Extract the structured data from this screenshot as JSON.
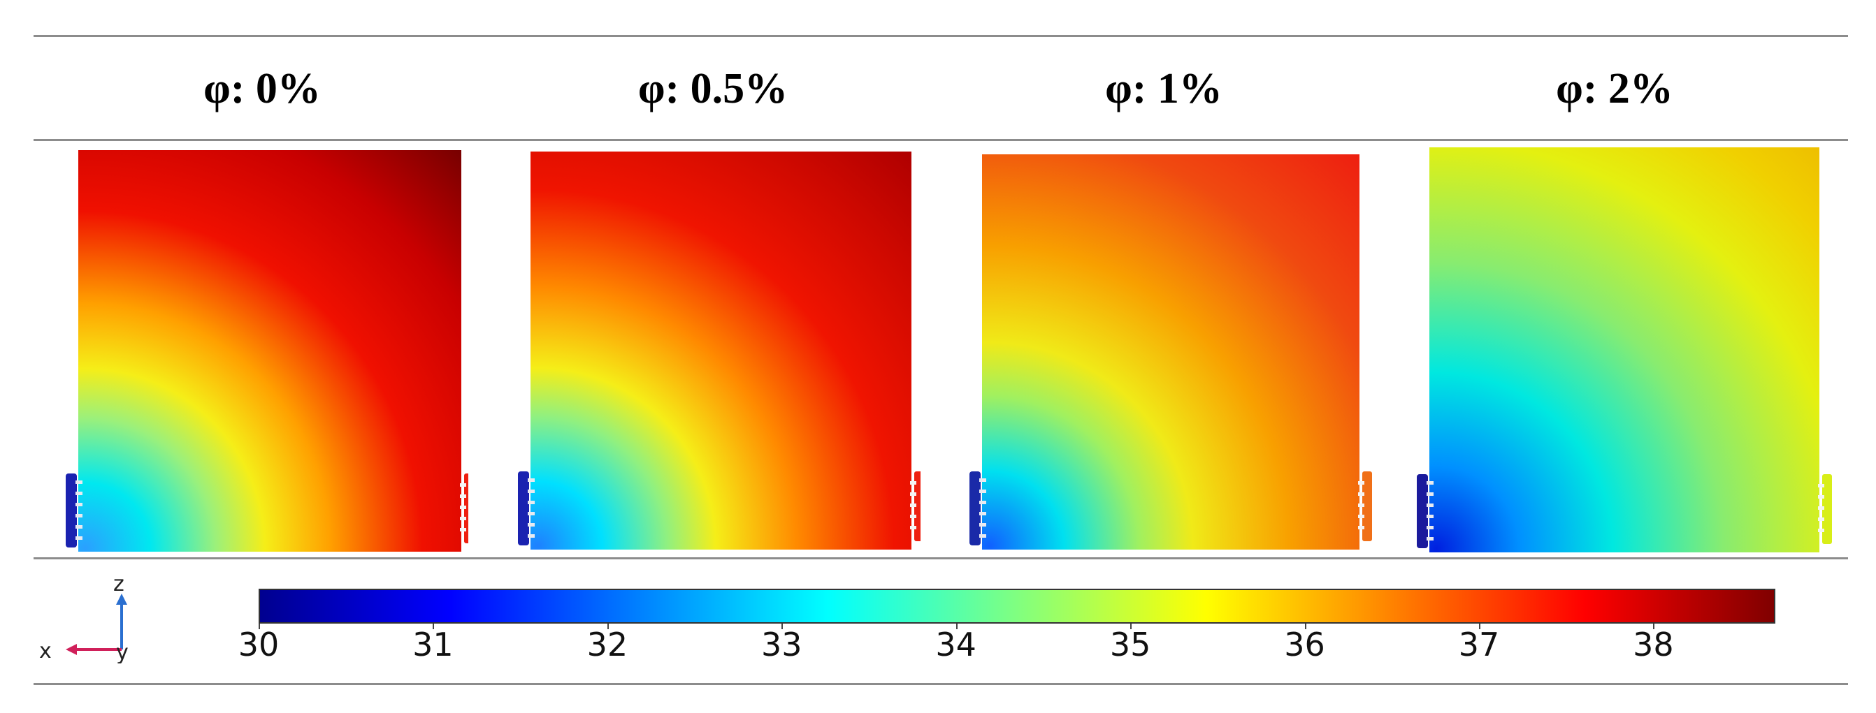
{
  "panels": [
    {
      "label": "φ: 0%",
      "level": 0.0
    },
    {
      "label": "φ: 0.5%",
      "level": 0.33
    },
    {
      "label": "φ: 1%",
      "level": 0.6
    },
    {
      "label": "φ: 2%",
      "level": 1.0
    }
  ],
  "colorbar": {
    "min": 30,
    "max": 38.7,
    "ticks": [
      "30",
      "31",
      "32",
      "33",
      "34",
      "35",
      "36",
      "37",
      "38"
    ],
    "colormap": [
      "#00008f",
      "#0000ff",
      "#0080ff",
      "#00ffff",
      "#80ff80",
      "#ffff00",
      "#ff8000",
      "#ff0000",
      "#800000"
    ]
  },
  "axes": {
    "x": "x",
    "y": "y",
    "z": "z"
  }
}
